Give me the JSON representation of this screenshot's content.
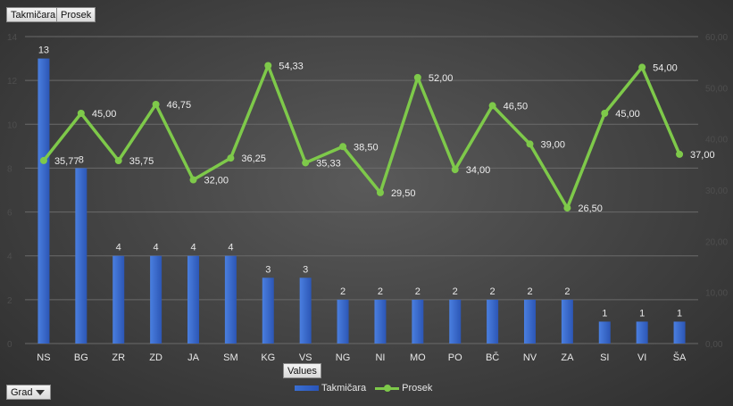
{
  "field_buttons": {
    "data_field_1": "Takmičara",
    "data_field_2": "Prosek",
    "values_field": "Values",
    "axis_field": "Grad"
  },
  "icons": {
    "axis_filter": "filter-dropdown-icon"
  },
  "chart_data": {
    "type": "bar",
    "categories": [
      "NS",
      "BG",
      "ZR",
      "ZD",
      "JA",
      "SM",
      "KG",
      "VS",
      "NG",
      "NI",
      "MO",
      "PO",
      "BČ",
      "NV",
      "ZA",
      "SI",
      "VI",
      "ŠA"
    ],
    "series": [
      {
        "name": "Takmičara",
        "type": "bar",
        "axis": "primary",
        "color": "#3a6fd4",
        "values": [
          13,
          8,
          4,
          4,
          4,
          4,
          3,
          3,
          2,
          2,
          2,
          2,
          2,
          2,
          2,
          1,
          1,
          1
        ],
        "labels": [
          "13",
          "8",
          "4",
          "4",
          "4",
          "4",
          "3",
          "3",
          "2",
          "2",
          "2",
          "2",
          "2",
          "2",
          "2",
          "1",
          "1",
          "1"
        ]
      },
      {
        "name": "Prosek",
        "type": "line",
        "axis": "secondary",
        "color": "#7ec94a",
        "values": [
          35.77,
          45.0,
          35.75,
          46.75,
          32.0,
          36.25,
          54.33,
          35.33,
          38.5,
          29.5,
          52.0,
          34.0,
          46.5,
          39.0,
          26.5,
          45.0,
          54.0,
          37.0
        ],
        "labels": [
          "35,77",
          "45,00",
          "35,75",
          "46,75",
          "32,00",
          "36,25",
          "54,33",
          "35,33",
          "38,50",
          "29,50",
          "52,00",
          "34,00",
          "46,50",
          "39,00",
          "26,50",
          "45,00",
          "54,00",
          "37,00"
        ]
      }
    ],
    "y_primary": {
      "ylim": [
        0,
        14
      ],
      "ticks": [
        "0",
        "2",
        "4",
        "6",
        "8",
        "10",
        "12",
        "14"
      ]
    },
    "y_secondary": {
      "ylim": [
        0,
        60
      ],
      "ticks": [
        "0,00",
        "10,00",
        "20,00",
        "30,00",
        "40,00",
        "50,00",
        "60,00"
      ]
    },
    "grid": true,
    "legend": {
      "position": "bottom",
      "entries": [
        "Takmičara",
        "Prosek"
      ]
    }
  }
}
